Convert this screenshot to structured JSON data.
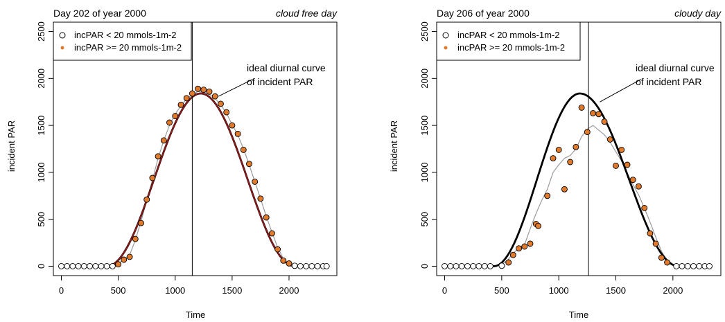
{
  "chart_data": [
    {
      "type": "scatter",
      "title": "Day 202 of year 2000",
      "subtitle": "cloud free day",
      "xlabel": "Time",
      "ylabel": "incident PAR",
      "xlim": [
        -70,
        2420
      ],
      "ylim": [
        -100,
        2600
      ],
      "x_ticks": [
        0,
        500,
        1000,
        1500,
        2000
      ],
      "y_ticks": [
        0,
        500,
        1000,
        1500,
        2000,
        2500
      ],
      "vline_x": 1150,
      "legend": {
        "placement": "top-left",
        "entries": [
          {
            "label": "incPAR < 20 mmols-1m-2",
            "marker": "open-circle"
          },
          {
            "label": "incPAR >= 20 mmols-1m-2",
            "marker": "filled-circle"
          }
        ]
      },
      "annotation": {
        "lines": [
          "ideal diurnal curve",
          "of incident PAR"
        ],
        "x": 1680,
        "y": 2050,
        "arrow_to": [
          1380,
          1810
        ]
      },
      "ideal_curve": {
        "t_start": 400,
        "t_end": 2050,
        "peak_t": 1225,
        "peak": 1840,
        "color": "#000000"
      },
      "fitted_curve": {
        "color": "#8B1A1A"
      },
      "series": [
        {
          "name": "incPAR < 20 mmols-1m-2",
          "style": "open",
          "points": [
            [
              0,
              0
            ],
            [
              50,
              0
            ],
            [
              100,
              0
            ],
            [
              150,
              0
            ],
            [
              200,
              0
            ],
            [
              250,
              0
            ],
            [
              300,
              0
            ],
            [
              350,
              0
            ],
            [
              400,
              0
            ],
            [
              450,
              0
            ],
            [
              2050,
              5
            ],
            [
              2100,
              0
            ],
            [
              2150,
              0
            ],
            [
              2200,
              0
            ],
            [
              2250,
              0
            ],
            [
              2300,
              0
            ],
            [
              2330,
              0
            ]
          ]
        },
        {
          "name": "incPAR >= 20 mmols-1m-2",
          "style": "filled",
          "points": [
            [
              500,
              20
            ],
            [
              550,
              70
            ],
            [
              600,
              100
            ],
            [
              650,
              290
            ],
            [
              700,
              460
            ],
            [
              750,
              710
            ],
            [
              800,
              940
            ],
            [
              850,
              1170
            ],
            [
              900,
              1340
            ],
            [
              950,
              1530
            ],
            [
              1000,
              1600
            ],
            [
              1050,
              1720
            ],
            [
              1100,
              1790
            ],
            [
              1150,
              1840
            ],
            [
              1200,
              1890
            ],
            [
              1250,
              1880
            ],
            [
              1300,
              1860
            ],
            [
              1350,
              1810
            ],
            [
              1400,
              1730
            ],
            [
              1450,
              1640
            ],
            [
              1500,
              1500
            ],
            [
              1550,
              1410
            ],
            [
              1600,
              1240
            ],
            [
              1650,
              1090
            ],
            [
              1700,
              900
            ],
            [
              1750,
              720
            ],
            [
              1800,
              520
            ],
            [
              1850,
              350
            ],
            [
              1900,
              180
            ],
            [
              1950,
              60
            ],
            [
              2000,
              30
            ]
          ]
        }
      ],
      "grey_line": [
        [
          400,
          0
        ],
        [
          450,
          5
        ],
        [
          500,
          30
        ],
        [
          550,
          70
        ],
        [
          600,
          120
        ],
        [
          650,
          280
        ],
        [
          700,
          480
        ],
        [
          750,
          700
        ],
        [
          800,
          920
        ],
        [
          850,
          1150
        ],
        [
          900,
          1340
        ],
        [
          950,
          1500
        ],
        [
          1000,
          1620
        ],
        [
          1050,
          1710
        ],
        [
          1100,
          1780
        ],
        [
          1150,
          1830
        ],
        [
          1200,
          1860
        ],
        [
          1250,
          1855
        ],
        [
          1300,
          1830
        ],
        [
          1350,
          1790
        ],
        [
          1400,
          1720
        ],
        [
          1450,
          1630
        ],
        [
          1500,
          1510
        ],
        [
          1550,
          1400
        ],
        [
          1600,
          1250
        ],
        [
          1650,
          1080
        ],
        [
          1700,
          900
        ],
        [
          1750,
          720
        ],
        [
          1800,
          530
        ],
        [
          1850,
          360
        ],
        [
          1900,
          200
        ],
        [
          1950,
          80
        ],
        [
          2000,
          20
        ],
        [
          2050,
          0
        ]
      ]
    },
    {
      "type": "scatter",
      "title": "Day 206 of year 2000",
      "subtitle": "cloudy day",
      "xlabel": "Time",
      "ylabel": "incident PAR",
      "xlim": [
        -70,
        2420
      ],
      "ylim": [
        -100,
        2600
      ],
      "x_ticks": [
        0,
        500,
        1000,
        1500,
        2000
      ],
      "y_ticks": [
        0,
        500,
        1000,
        1500,
        2000,
        2500
      ],
      "vline_x": 1260,
      "legend": {
        "placement": "top-left",
        "entries": [
          {
            "label": "incPAR < 20 mmols-1m-2",
            "marker": "open-circle"
          },
          {
            "label": "incPAR >= 20 mmols-1m-2",
            "marker": "filled-circle"
          }
        ]
      },
      "annotation": {
        "lines": [
          "ideal diurnal curve",
          "of incident PAR"
        ],
        "x": 1720,
        "y": 2050,
        "arrow_to": [
          1360,
          1750
        ]
      },
      "ideal_curve": {
        "t_start": 430,
        "t_end": 2050,
        "peak_t": 1185,
        "peak": 1840,
        "color": "#000000",
        "extend_from": -20,
        "extend_to": 2330
      },
      "fitted_curve": null,
      "series": [
        {
          "name": "incPAR < 20 mmols-1m-2",
          "style": "open",
          "points": [
            [
              0,
              0
            ],
            [
              50,
              0
            ],
            [
              100,
              0
            ],
            [
              150,
              0
            ],
            [
              200,
              0
            ],
            [
              250,
              0
            ],
            [
              300,
              0
            ],
            [
              350,
              0
            ],
            [
              400,
              0
            ],
            [
              500,
              5
            ],
            [
              2030,
              0
            ],
            [
              2080,
              0
            ],
            [
              2130,
              0
            ],
            [
              2180,
              0
            ],
            [
              2230,
              0
            ],
            [
              2280,
              0
            ],
            [
              2320,
              0
            ]
          ]
        },
        {
          "name": "incPAR >= 20 mmols-1m-2",
          "style": "filled",
          "points": [
            [
              560,
              40
            ],
            [
              600,
              120
            ],
            [
              650,
              190
            ],
            [
              700,
              210
            ],
            [
              750,
              240
            ],
            [
              800,
              450
            ],
            [
              820,
              430
            ],
            [
              900,
              750
            ],
            [
              950,
              1150
            ],
            [
              1000,
              1240
            ],
            [
              1050,
              820
            ],
            [
              1100,
              1110
            ],
            [
              1150,
              1270
            ],
            [
              1200,
              1690
            ],
            [
              1250,
              1430
            ],
            [
              1300,
              1630
            ],
            [
              1350,
              1620
            ],
            [
              1400,
              1540
            ],
            [
              1450,
              1350
            ],
            [
              1500,
              1070
            ],
            [
              1550,
              1240
            ],
            [
              1600,
              1080
            ],
            [
              1650,
              920
            ],
            [
              1700,
              850
            ],
            [
              1750,
              620
            ],
            [
              1800,
              350
            ],
            [
              1850,
              240
            ],
            [
              1900,
              90
            ],
            [
              1950,
              40
            ]
          ]
        }
      ],
      "grey_line": [
        [
          400,
          0
        ],
        [
          450,
          5
        ],
        [
          500,
          20
        ],
        [
          550,
          60
        ],
        [
          600,
          140
        ],
        [
          650,
          190
        ],
        [
          700,
          230
        ],
        [
          750,
          400
        ],
        [
          800,
          560
        ],
        [
          850,
          700
        ],
        [
          900,
          820
        ],
        [
          950,
          1000
        ],
        [
          1000,
          1080
        ],
        [
          1050,
          1150
        ],
        [
          1100,
          1180
        ],
        [
          1150,
          1250
        ],
        [
          1200,
          1380
        ],
        [
          1250,
          1460
        ],
        [
          1300,
          1500
        ],
        [
          1350,
          1450
        ],
        [
          1400,
          1400
        ],
        [
          1450,
          1320
        ],
        [
          1500,
          1220
        ],
        [
          1550,
          1120
        ],
        [
          1600,
          990
        ],
        [
          1650,
          870
        ],
        [
          1700,
          760
        ],
        [
          1750,
          620
        ],
        [
          1800,
          470
        ],
        [
          1850,
          310
        ],
        [
          1900,
          160
        ],
        [
          1950,
          60
        ],
        [
          2000,
          10
        ],
        [
          2050,
          0
        ]
      ]
    }
  ]
}
